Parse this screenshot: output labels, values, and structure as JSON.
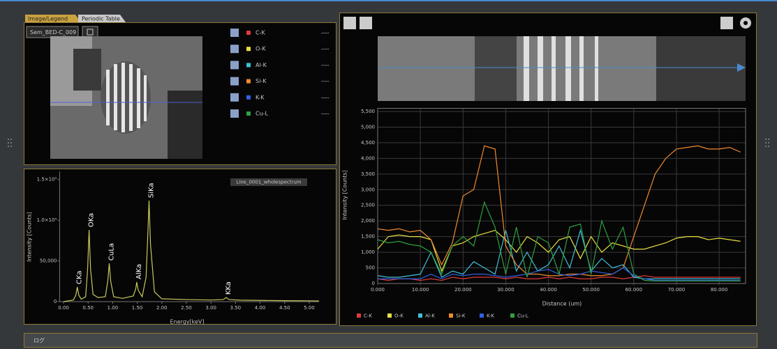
{
  "tabs": [
    "Image/Legend",
    "Periodic Table"
  ],
  "image_name": "Sem_BED-C_009",
  "legend": [
    {
      "name": "C-K",
      "color": "#e03a3a",
      "value": "----"
    },
    {
      "name": "O-K",
      "color": "#e8e040",
      "value": "----"
    },
    {
      "name": "Al-K",
      "color": "#40c0d8",
      "value": "----"
    },
    {
      "name": "Si-K",
      "color": "#f08a30",
      "value": "----"
    },
    {
      "name": "K-K",
      "color": "#3060e0",
      "value": "----"
    },
    {
      "name": "Cu-L",
      "color": "#30a040",
      "value": "----"
    }
  ],
  "spectrum": {
    "type": "line",
    "title": "Line_0001_wholespectrum",
    "x_label": "Energy[keV]",
    "y_label": "Intensity [Counts]",
    "color": "#c8c860",
    "x": [
      0,
      0.1,
      0.2,
      0.25,
      0.28,
      0.31,
      0.36,
      0.45,
      0.49,
      0.52,
      0.55,
      0.6,
      0.7,
      0.85,
      0.9,
      0.93,
      0.96,
      1.02,
      1.2,
      1.42,
      1.47,
      1.49,
      1.52,
      1.6,
      1.68,
      1.72,
      1.74,
      1.77,
      1.85,
      2.0,
      2.5,
      3.0,
      3.25,
      3.31,
      3.37,
      3.6,
      4.0,
      4.5,
      5.0,
      5.2
    ],
    "values": [
      0,
      1000,
      2000,
      8000,
      18000,
      8000,
      3000,
      6000,
      40000,
      88000,
      40000,
      9000,
      5000,
      6000,
      25000,
      47000,
      25000,
      6000,
      4000,
      7000,
      16000,
      24000,
      14000,
      6000,
      30000,
      90000,
      124000,
      70000,
      12000,
      3500,
      2500,
      2000,
      2500,
      5000,
      2500,
      1800,
      1500,
      1200,
      1000,
      800
    ],
    "annotations": [
      {
        "text": "CKa",
        "x": 0.28,
        "y": 18000
      },
      {
        "text": "OKa",
        "x": 0.52,
        "y": 88000
      },
      {
        "text": "CuLa",
        "x": 0.93,
        "y": 47000
      },
      {
        "text": "AlKa",
        "x": 1.49,
        "y": 24000
      },
      {
        "text": "SiKa",
        "x": 1.74,
        "y": 124000
      },
      {
        "text": "KKa",
        "x": 3.31,
        "y": 5000
      }
    ],
    "xlim": [
      -0.08,
      5.2
    ],
    "ylim": [
      0,
      160000
    ],
    "xticks": [
      {
        "value": 0,
        "label": "0.00"
      },
      {
        "value": 0.5,
        "label": "0.50"
      },
      {
        "value": 1,
        "label": "1.00"
      },
      {
        "value": 1.5,
        "label": "1.50"
      },
      {
        "value": 2,
        "label": "2.00"
      },
      {
        "value": 2.5,
        "label": "2.50"
      },
      {
        "value": 3,
        "label": "3.00"
      },
      {
        "value": 3.5,
        "label": "3.50"
      },
      {
        "value": 4,
        "label": "4.00"
      },
      {
        "value": 4.5,
        "label": "4.50"
      },
      {
        "value": 5,
        "label": "5.00"
      }
    ],
    "yticks": [
      0,
      {
        "value": 50000,
        "label": "50,000"
      },
      {
        "value": 100000,
        "label": "1.0×10⁵"
      },
      {
        "value": 150000,
        "label": "1.5×10⁵"
      }
    ]
  },
  "line_scan": {
    "type": "line",
    "x_label": "Distance (um)",
    "y_label": "Intensity [Counts]",
    "grid": true,
    "x": [
      0,
      2.5,
      5,
      7.5,
      10,
      12.5,
      15,
      17.5,
      20,
      22.5,
      25,
      27.5,
      30,
      32.5,
      35,
      37.5,
      40,
      42.5,
      45,
      47.5,
      50,
      52.5,
      55,
      57.5,
      60,
      62.5,
      65,
      67.5,
      70,
      72.5,
      75,
      77.5,
      80,
      82.5,
      85
    ],
    "series": [
      {
        "name": "C-K",
        "color": "#e03a3a",
        "values": [
          150,
          100,
          150,
          150,
          100,
          150,
          100,
          200,
          150,
          200,
          200,
          200,
          150,
          200,
          150,
          150,
          200,
          150,
          200,
          150,
          150,
          200,
          200,
          150,
          200,
          250,
          200,
          200,
          200,
          200,
          200,
          200,
          200,
          200,
          200
        ]
      },
      {
        "name": "O-K",
        "color": "#e8e040",
        "values": [
          1100,
          1500,
          1550,
          1500,
          1500,
          1400,
          400,
          1200,
          1300,
          1500,
          1600,
          1700,
          1400,
          1000,
          1500,
          1300,
          1000,
          1400,
          1500,
          800,
          1500,
          1000,
          1300,
          1200,
          1100,
          1100,
          1200,
          1300,
          1450,
          1500,
          1500,
          1400,
          1450,
          1400,
          1350
        ]
      },
      {
        "name": "Al-K",
        "color": "#40c0d8",
        "values": [
          250,
          200,
          200,
          250,
          300,
          1000,
          200,
          400,
          300,
          700,
          500,
          300,
          1700,
          400,
          1000,
          400,
          600,
          1200,
          500,
          1700,
          400,
          800,
          500,
          600,
          200,
          150,
          150,
          150,
          150,
          150,
          150,
          150,
          150,
          150,
          150
        ]
      },
      {
        "name": "Si-K",
        "color": "#f08a30",
        "values": [
          1750,
          1700,
          1750,
          1650,
          1700,
          1400,
          600,
          1300,
          2800,
          3000,
          4400,
          4300,
          1200,
          600,
          300,
          300,
          250,
          250,
          300,
          300,
          250,
          250,
          300,
          500,
          1500,
          2500,
          3500,
          4000,
          4300,
          4350,
          4400,
          4300,
          4300,
          4350,
          4200
        ]
      },
      {
        "name": "K-K",
        "color": "#3060e0",
        "values": [
          150,
          150,
          150,
          150,
          150,
          300,
          150,
          300,
          250,
          300,
          300,
          250,
          200,
          250,
          300,
          400,
          450,
          300,
          250,
          300,
          400,
          350,
          300,
          500,
          250,
          150,
          100,
          100,
          100,
          100,
          100,
          100,
          100,
          100,
          100
        ]
      },
      {
        "name": "Cu-L",
        "color": "#30a040",
        "values": [
          1400,
          1300,
          1350,
          1250,
          1200,
          1000,
          300,
          1200,
          1500,
          1200,
          2600,
          1800,
          300,
          1800,
          200,
          1500,
          1300,
          300,
          1800,
          1900,
          300,
          2000,
          1100,
          1800,
          300,
          100,
          80,
          80,
          80,
          80,
          80,
          80,
          80,
          80,
          80
        ]
      }
    ],
    "xlim": [
      0,
      86.2
    ],
    "ylim": [
      0,
      5600
    ],
    "xticks": [
      {
        "value": 0,
        "label": "0.000"
      },
      {
        "value": 10,
        "label": "10.000"
      },
      {
        "value": 20,
        "label": "20.000"
      },
      {
        "value": 30,
        "label": "30.000"
      },
      {
        "value": 40,
        "label": "40.000"
      },
      {
        "value": 50,
        "label": "50.000"
      },
      {
        "value": 60,
        "label": "60.000"
      },
      {
        "value": 70,
        "label": "70.000"
      },
      {
        "value": 80,
        "label": "80.000"
      }
    ],
    "yticks": [
      0,
      500,
      {
        "value": 1000,
        "label": "1,000"
      },
      {
        "value": 1500,
        "label": "1,500"
      },
      {
        "value": 2000,
        "label": "2,000"
      },
      {
        "value": 2500,
        "label": "2,500"
      },
      {
        "value": 3000,
        "label": "3,000"
      },
      {
        "value": 3500,
        "label": "3,500"
      },
      {
        "value": 4000,
        "label": "4,000"
      },
      {
        "value": 4500,
        "label": "4,500"
      },
      {
        "value": 5000,
        "label": "5,000"
      },
      {
        "value": 5500,
        "label": "5,500"
      }
    ]
  },
  "log_label": "ログ"
}
